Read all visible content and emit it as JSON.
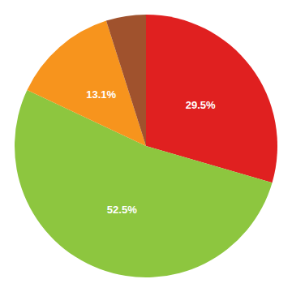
{
  "chart_data": {
    "type": "pie",
    "values": [
      29.5,
      52.5,
      13.1,
      4.9
    ],
    "value_labels": [
      "29.5%",
      "52.5%",
      "13.1%",
      null
    ],
    "colors": [
      "#e02020",
      "#8dc63f",
      "#f7941d",
      "#a0522d"
    ],
    "data_labels": true
  }
}
